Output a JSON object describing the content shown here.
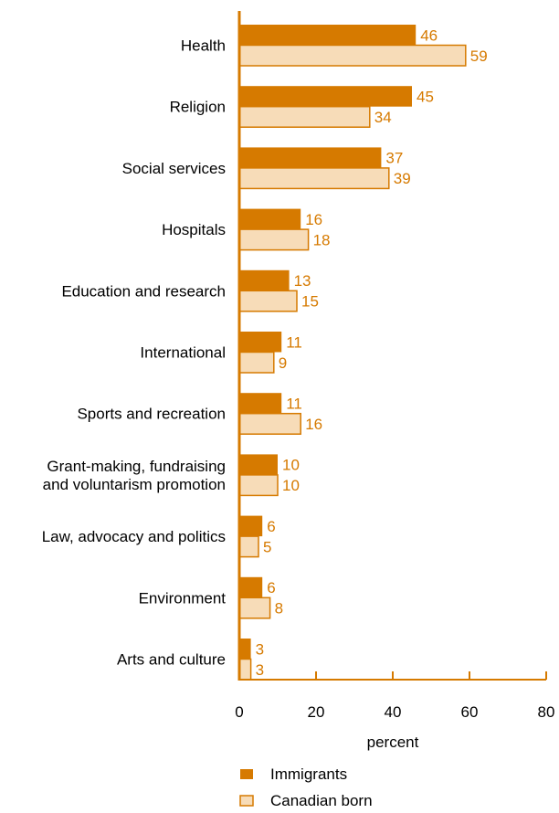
{
  "chart_data": {
    "type": "bar",
    "orientation": "horizontal",
    "categories": [
      "Health",
      "Religion",
      "Social services",
      "Hospitals",
      "Education and research",
      "International",
      "Sports and recreation",
      "Grant-making, fundraising and voluntarism promotion",
      "Law, advocacy and politics",
      "Environment",
      "Arts and culture"
    ],
    "category_lines": [
      [
        "Health"
      ],
      [
        "Religion"
      ],
      [
        "Social services"
      ],
      [
        "Hospitals"
      ],
      [
        "Education and research"
      ],
      [
        "International"
      ],
      [
        "Sports and recreation"
      ],
      [
        "Grant-making, fundraising",
        "and voluntarism promotion"
      ],
      [
        "Law, advocacy and politics"
      ],
      [
        "Environment"
      ],
      [
        "Arts and culture"
      ]
    ],
    "series": [
      {
        "name": "Immigrants",
        "color": "#d67a00",
        "values": [
          46,
          45,
          37,
          16,
          13,
          11,
          11,
          10,
          6,
          6,
          3
        ]
      },
      {
        "name": "Canadian born",
        "color": "#f7dcb8",
        "values": [
          59,
          34,
          39,
          18,
          15,
          9,
          16,
          10,
          5,
          8,
          3
        ]
      }
    ],
    "xlabel": "percent",
    "xlim": [
      0,
      80
    ],
    "xticks": [
      0,
      20,
      40,
      60,
      80
    ],
    "value_label_color": "#d67a00",
    "axis_color": "#d67a00",
    "bar_stroke_color": "#d67a00",
    "legend_position": "bottom",
    "grid": false
  }
}
